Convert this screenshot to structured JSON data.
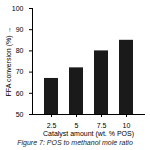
{
  "chart_data": {
    "type": "bar",
    "title": "Figure 7: POS to methanol mole ratio",
    "xlabel": "Catalyst amount (wt. % POS)",
    "ylabel": "FFA conversion (%)",
    "categories": [
      "2.5",
      "5",
      "7.5",
      "10"
    ],
    "values": [
      67,
      72,
      80,
      85
    ],
    "color": "#1a1a1a",
    "ylim": [
      50,
      100
    ],
    "yticks": [
      50,
      60,
      70,
      80,
      90,
      100
    ]
  }
}
